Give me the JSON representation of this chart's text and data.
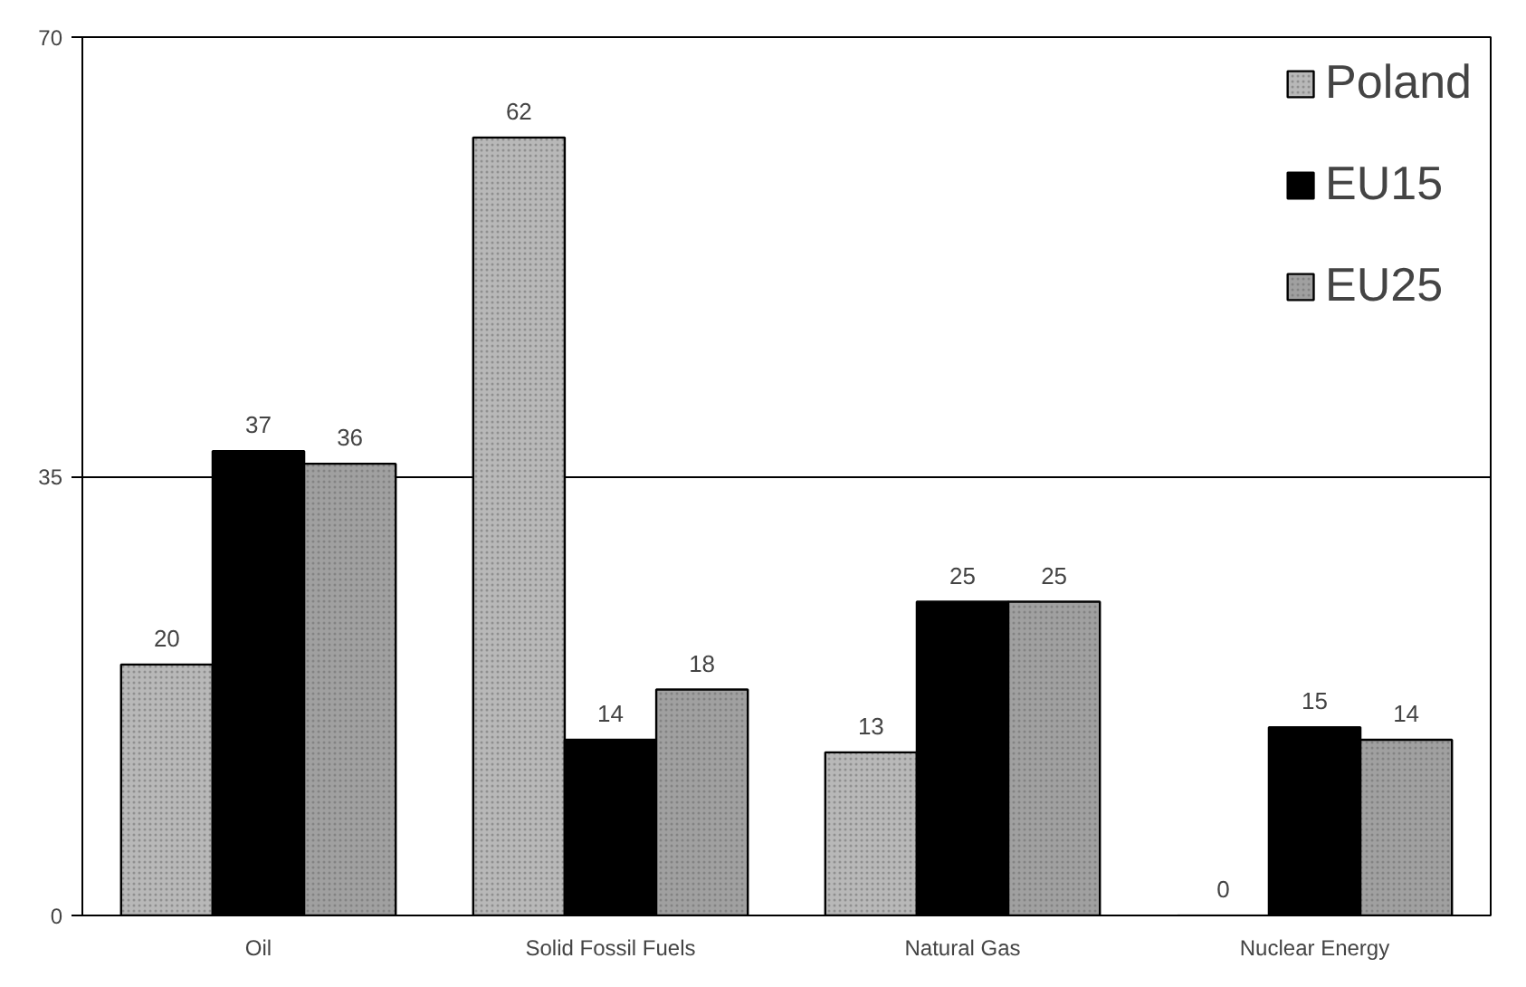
{
  "chart_data": {
    "type": "bar",
    "categories": [
      "Oil",
      "Solid Fossil Fuels",
      "Natural Gas",
      "Nuclear Energy"
    ],
    "series": [
      {
        "name": "Poland",
        "color": "#b8b8b8",
        "values": [
          20,
          62,
          13,
          0
        ]
      },
      {
        "name": "EU15",
        "color": "#000000",
        "values": [
          37,
          14,
          25,
          15
        ]
      },
      {
        "name": "EU25",
        "color": "#a0a0a0",
        "values": [
          36,
          18,
          25,
          14
        ]
      }
    ],
    "ylim": [
      0,
      70
    ],
    "yticks": [
      0,
      35,
      70
    ],
    "grid": "y",
    "legend": "top right",
    "data_labels": true
  }
}
